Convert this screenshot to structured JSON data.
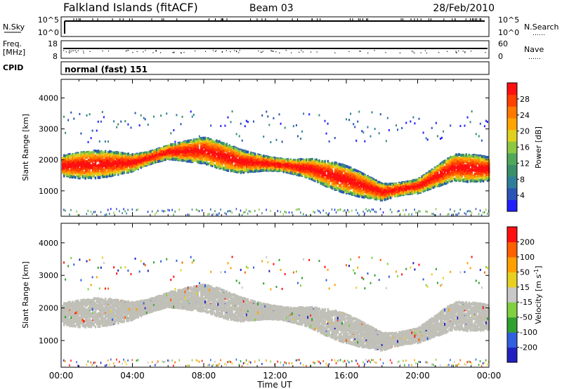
{
  "header": {
    "station": "Falkland Islands (fitACF)",
    "beam": "Beam 03",
    "date": "28/Feb/2010"
  },
  "strip_nsky": {
    "label": "N.Sky",
    "right_label": "N.Search",
    "right_dots": "……",
    "ticks_left": [
      "10^5",
      "10^0"
    ],
    "ticks_right": [
      "10^5",
      "10^0"
    ]
  },
  "strip_freq": {
    "label_line1": "Freq.",
    "label_line2": "[MHz]",
    "right_label": "Nave",
    "right_dots": "……",
    "ticks_left": [
      "18",
      "8"
    ],
    "ticks_right": [
      "60",
      "0"
    ]
  },
  "strip_cpid": {
    "label": "CPID",
    "value": "normal (fast) 151"
  },
  "chart_data": [
    {
      "type": "heatmap",
      "title": "",
      "quantity": "Power",
      "ylabel": "Slant Range [km]",
      "xlabel": "",
      "ylim": [
        180,
        4600
      ],
      "yticks": [
        "4000",
        "3000",
        "2000",
        "1000"
      ],
      "colorbar": {
        "label": "Power [dB]",
        "range": [
          0,
          32
        ],
        "ticks": [
          "28",
          "24",
          "20",
          "16",
          "12",
          "8",
          "4"
        ],
        "colors": [
          "#2020ff",
          "#2a55b5",
          "#2f7f9a",
          "#3a8f6a",
          "#52a85a",
          "#8cc843",
          "#e0d020",
          "#ffa500",
          "#ff7800",
          "#ff4000",
          "#ff1010"
        ]
      },
      "approx_echo_band_center_km": {
        "x_hours": [
          0,
          2,
          4,
          6,
          8,
          10,
          12,
          14,
          16,
          18,
          20,
          22,
          24
        ],
        "range_km": [
          1850,
          1900,
          1950,
          2300,
          2350,
          2000,
          1900,
          1750,
          1400,
          1000,
          1200,
          1800,
          1750
        ]
      }
    },
    {
      "type": "heatmap",
      "title": "",
      "quantity": "Velocity",
      "ylabel": "Slant Range [km]",
      "xlabel": "Time UT",
      "ylim": [
        180,
        4600
      ],
      "yticks": [
        "4000",
        "3000",
        "2000",
        "1000"
      ],
      "xticks": [
        "00:00",
        "04:00",
        "08:00",
        "12:00",
        "16:00",
        "20:00",
        "00:00"
      ],
      "colorbar": {
        "label": "Velocity [m s^-1]",
        "range": [
          -250,
          250
        ],
        "ticks": [
          "200",
          "100",
          "50",
          "15",
          "-15",
          "-50",
          "-100",
          "-200"
        ],
        "colors": [
          "#2020c0",
          "#3060e0",
          "#30a030",
          "#80d040",
          "#c8c8c8",
          "#e8d020",
          "#ffa000",
          "#ff6000",
          "#ff1010"
        ]
      },
      "ground_scatter_color": "#c0c0b8"
    }
  ]
}
